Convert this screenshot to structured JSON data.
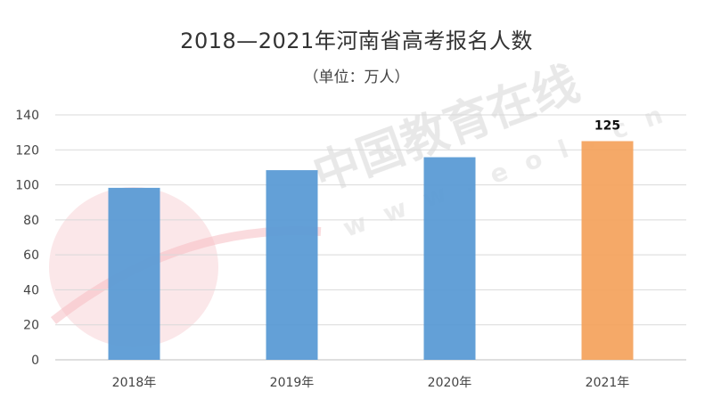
{
  "watermark": {
    "brand": "中国教育在线",
    "url": "w w w . e o l . c n"
  },
  "chart_data": {
    "type": "bar",
    "title": "2018—2021年河南省高考报名人数",
    "subtitle": "（单位：万人）",
    "categories": [
      "2018年",
      "2019年",
      "2020年",
      "2021年"
    ],
    "values": [
      98.3,
      108.4,
      115.8,
      125
    ],
    "data_labels": [
      "",
      "",
      "",
      "125"
    ],
    "colors": [
      "#5b9bd5",
      "#5b9bd5",
      "#5b9bd5",
      "#f4a460"
    ],
    "ylim": [
      0,
      140
    ],
    "yticks": [
      0,
      20,
      40,
      60,
      80,
      100,
      120,
      140
    ],
    "grid": true,
    "legend": "none",
    "xlabel": "",
    "ylabel": ""
  }
}
